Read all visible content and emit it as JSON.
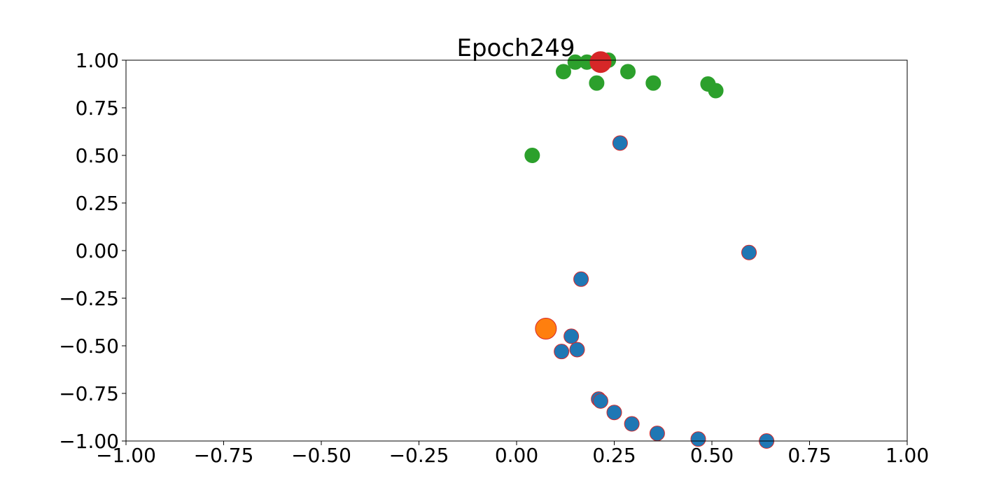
{
  "chart_data": {
    "type": "scatter",
    "title": "Epoch249",
    "xlabel": "",
    "ylabel": "",
    "xlim": [
      -1.0,
      1.0
    ],
    "ylim": [
      -1.0,
      1.0
    ],
    "grid": false,
    "x_ticks": [
      "−1.00",
      "−0.75",
      "−0.50",
      "−0.25",
      "0.00",
      "0.25",
      "0.50",
      "0.75",
      "1.00"
    ],
    "y_ticks": [
      "1.00",
      "0.75",
      "0.50",
      "0.25",
      "0.00",
      "−0.25",
      "−0.50",
      "−0.75",
      "−1.00"
    ],
    "series": [
      {
        "color": "#2ca02c",
        "edge": "#2ca02c",
        "size": "normal",
        "points": [
          [
            0.04,
            0.5
          ],
          [
            0.12,
            0.94
          ],
          [
            0.15,
            0.99
          ],
          [
            0.18,
            0.99
          ],
          [
            0.205,
            0.88
          ],
          [
            0.235,
            1.0
          ],
          [
            0.285,
            0.94
          ],
          [
            0.35,
            0.88
          ],
          [
            0.49,
            0.875
          ],
          [
            0.51,
            0.84
          ]
        ]
      },
      {
        "color": "#1f77b4",
        "edge": "#d62728",
        "size": "normal",
        "points": [
          [
            0.265,
            0.565
          ],
          [
            0.595,
            -0.01
          ],
          [
            0.165,
            -0.15
          ],
          [
            0.14,
            -0.45
          ],
          [
            0.115,
            -0.53
          ],
          [
            0.155,
            -0.52
          ],
          [
            0.21,
            -0.78
          ],
          [
            0.215,
            -0.79
          ],
          [
            0.25,
            -0.85
          ],
          [
            0.295,
            -0.91
          ],
          [
            0.36,
            -0.96
          ],
          [
            0.465,
            -0.99
          ],
          [
            0.64,
            -1.0
          ]
        ]
      },
      {
        "color": "#ff7f0e",
        "edge": "#d62728",
        "size": "large",
        "points": [
          [
            0.075,
            -0.41
          ]
        ]
      },
      {
        "color": "#d62728",
        "edge": "#d62728",
        "size": "large",
        "points": [
          [
            0.215,
            0.99
          ]
        ]
      }
    ]
  }
}
